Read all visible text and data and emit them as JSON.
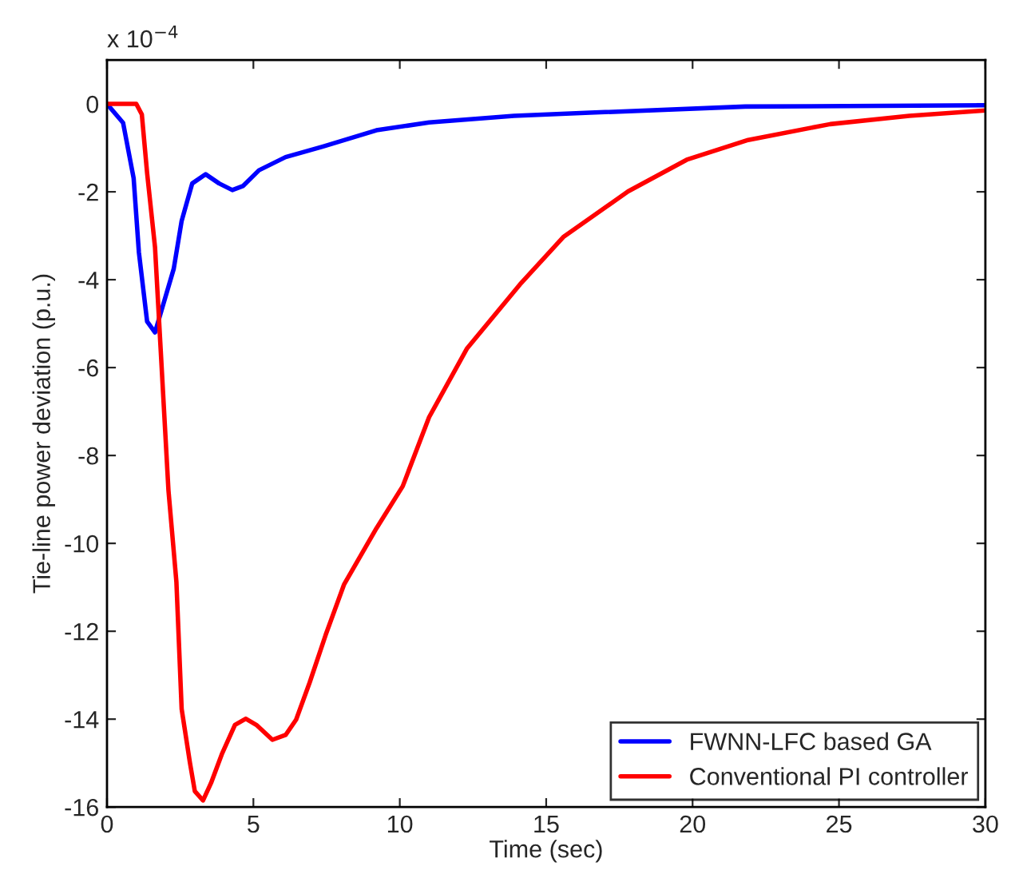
{
  "chart_data": {
    "type": "line",
    "xlabel": "Time (sec)",
    "ylabel": "Tie-line power deviation (p.u.)",
    "annotations": [
      "x 10$^{−4}$"
    ],
    "xlim": [
      0,
      30
    ],
    "xticks": [
      0,
      5,
      10,
      15,
      20,
      25,
      30
    ],
    "ylim": [
      -16,
      1
    ],
    "yticks": [
      -16,
      -14,
      -12,
      -10,
      -8,
      -6,
      -4,
      -2,
      0
    ],
    "grid": false,
    "legend": "bottom right",
    "line_style": "solid",
    "marker": "none",
    "series": [
      {
        "name": "FWNN-LFC based GA",
        "color": "#0000ff",
        "x": [
          0,
          0.55,
          0.91,
          1.09,
          1.37,
          1.64,
          1.91,
          2.28,
          2.55,
          2.91,
          3.37,
          3.83,
          4.28,
          4.64,
          5.19,
          6.1,
          7.38,
          9.2,
          11.0,
          13.9,
          16.5,
          21.8,
          30
        ],
        "values": [
          0,
          -0.43,
          -1.69,
          -3.38,
          -4.95,
          -5.2,
          -4.59,
          -3.75,
          -2.66,
          -1.81,
          -1.6,
          -1.81,
          -1.96,
          -1.87,
          -1.51,
          -1.21,
          -0.97,
          -0.6,
          -0.42,
          -0.27,
          -0.2,
          -0.06,
          -0.03
        ]
      },
      {
        "name": "Conventional PI controller",
        "color": "#ff0000",
        "x": [
          0,
          1.0,
          1.19,
          1.37,
          1.64,
          1.82,
          2.1,
          2.37,
          2.55,
          2.83,
          3.0,
          3.28,
          3.55,
          3.92,
          4.37,
          4.74,
          5.1,
          5.65,
          6.1,
          6.46,
          6.92,
          7.47,
          8.1,
          9.2,
          10.1,
          11.0,
          12.3,
          14.1,
          15.6,
          17.8,
          19.8,
          21.9,
          24.7,
          27.4,
          30
        ],
        "values": [
          0,
          0,
          -0.24,
          -1.57,
          -3.26,
          -5.43,
          -8.8,
          -10.87,
          -13.77,
          -14.98,
          -15.64,
          -15.85,
          -15.46,
          -14.8,
          -14.13,
          -13.99,
          -14.13,
          -14.47,
          -14.36,
          -14.01,
          -13.17,
          -12.08,
          -10.93,
          -9.66,
          -8.7,
          -7.13,
          -5.56,
          -4.11,
          -3.02,
          -1.99,
          -1.27,
          -0.82,
          -0.46,
          -0.27,
          -0.15
        ]
      }
    ]
  }
}
